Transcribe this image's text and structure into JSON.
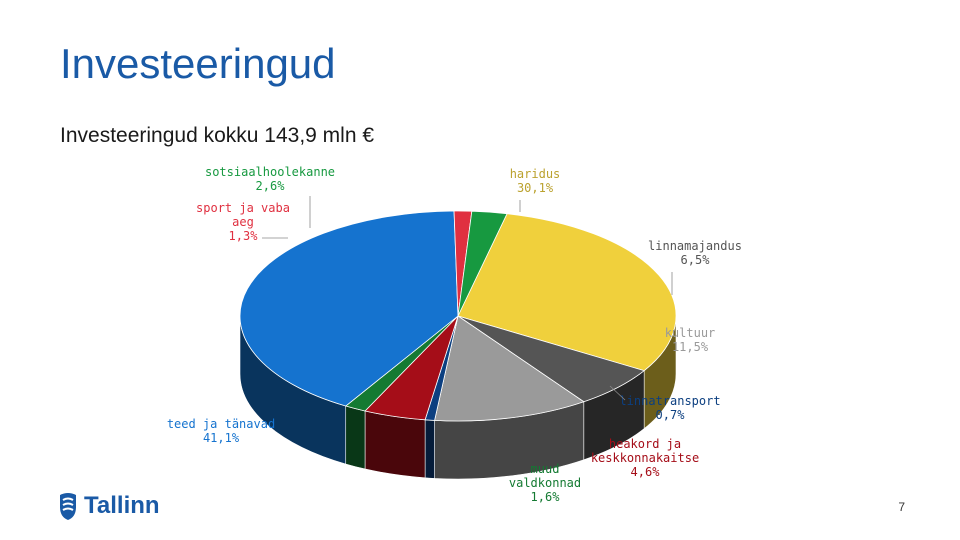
{
  "slide": {
    "title": "Investeeringud",
    "subtitle": "Investeeringud kokku 143,9 mln €",
    "logo_text": "Tallinn",
    "page_number": "7"
  },
  "chart_data": {
    "type": "pie",
    "title": "",
    "slices": [
      {
        "label": "haridus",
        "value": 30.1,
        "value_label": "30,1%",
        "color": "#f0d03c"
      },
      {
        "label": "linnamajandus",
        "value": 6.5,
        "value_label": "6,5%",
        "color": "#555555"
      },
      {
        "label": "kultuur",
        "value": 11.5,
        "value_label": "11,5%",
        "color": "#9a9a9a"
      },
      {
        "label": "linnatransport",
        "value": 0.7,
        "value_label": "0,7%",
        "color": "#0c3f80"
      },
      {
        "label": "heakord ja keskkonnakaitse",
        "value": 4.6,
        "value_label": "4,6%",
        "color": "#a50d18"
      },
      {
        "label": "muud valdkonnad",
        "value": 1.6,
        "value_label": "1,6%",
        "color": "#147a32"
      },
      {
        "label": "teed ja tänavad",
        "value": 41.1,
        "value_label": "41,1%",
        "color": "#1573cf"
      },
      {
        "label": "sport ja vaba aeg",
        "value": 1.3,
        "value_label": "1,3%",
        "color": "#e03040"
      },
      {
        "label": "sotsiaalhoolekanne",
        "value": 2.6,
        "value_label": "2,6%",
        "color": "#179940"
      }
    ]
  }
}
